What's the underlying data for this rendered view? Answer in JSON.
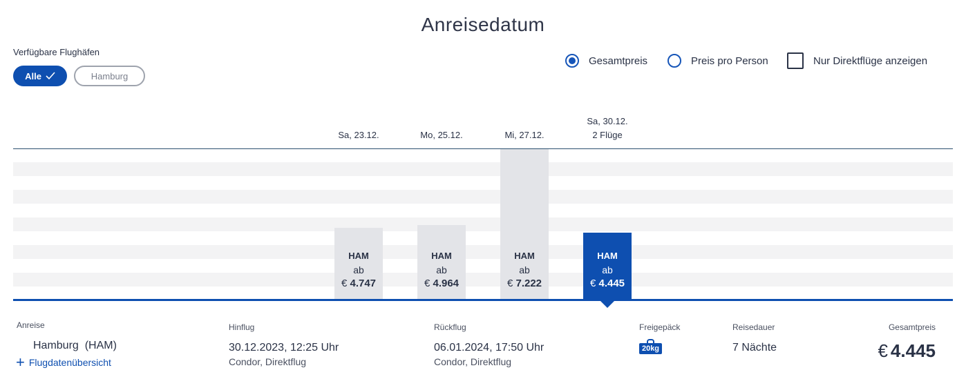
{
  "header": {
    "title": "Anreisedatum"
  },
  "airports": {
    "label": "Verfügbare Flughäfen",
    "all_label": "Alle",
    "hamburg_label": "Hamburg"
  },
  "options": {
    "total_price": "Gesamtpreis",
    "per_person": "Preis pro Person",
    "direct_only": "Nur Direktflüge anzeigen",
    "selected": "Gesamtpreis"
  },
  "dates": [
    {
      "date": "Sa, 23.12.",
      "extra": "",
      "code": "HAM",
      "ab": "ab",
      "currency": "€",
      "price": "4.747",
      "value": 4747,
      "selected": false
    },
    {
      "date": "Mo, 25.12.",
      "extra": "",
      "code": "HAM",
      "ab": "ab",
      "currency": "€",
      "price": "4.964",
      "value": 4964,
      "selected": false
    },
    {
      "date": "Mi, 27.12.",
      "extra": "",
      "code": "HAM",
      "ab": "ab",
      "currency": "€",
      "price": "7.222",
      "value": 7222,
      "selected": false
    },
    {
      "date": "Sa, 30.12.",
      "extra": "2 Flüge",
      "code": "HAM",
      "ab": "ab",
      "currency": "€",
      "price": "4.445",
      "value": 4445,
      "selected": true
    }
  ],
  "details": {
    "anreise_label": "Anreise",
    "anreise_value": "Hamburg  (HAM)",
    "overview_link": "Flugdatenübersicht",
    "hinflug_label": "Hinflug",
    "hinflug_value": "30.12.2023, 12:25 Uhr",
    "hinflug_sub": "Condor, Direktflug",
    "rueckflug_label": "Rückflug",
    "rueckflug_value": "06.01.2024, 17:50 Uhr",
    "rueckflug_sub": "Condor, Direktflug",
    "baggage_label": "Freigepäck",
    "baggage_value": "20kg",
    "duration_label": "Reisedauer",
    "duration_value": "7 Nächte",
    "total_label": "Gesamtpreis",
    "total_currency": "€",
    "total_value": "4.445"
  },
  "colors": {
    "accent": "#0e4fb0",
    "bar": "#e3e4e8",
    "stripe": "#f3f3f4"
  }
}
